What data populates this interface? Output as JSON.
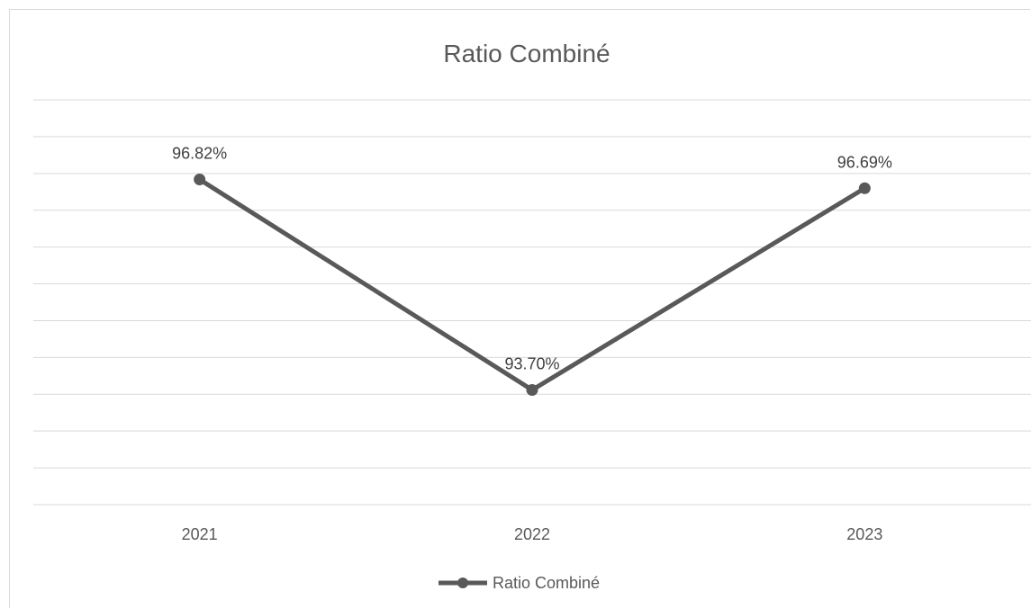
{
  "chart_data": {
    "type": "line",
    "title": "Ratio Combiné",
    "categories": [
      "2021",
      "2022",
      "2023"
    ],
    "series": [
      {
        "name": "Ratio Combiné",
        "values": [
          96.82,
          93.7,
          96.69
        ],
        "data_labels": [
          "96.82%",
          "93.70%",
          "96.69%"
        ],
        "color": "#595959"
      }
    ],
    "ylim": [
      92.0,
      98.0
    ],
    "grid": true,
    "legend": "bottom",
    "xlabel": "",
    "ylabel": ""
  }
}
